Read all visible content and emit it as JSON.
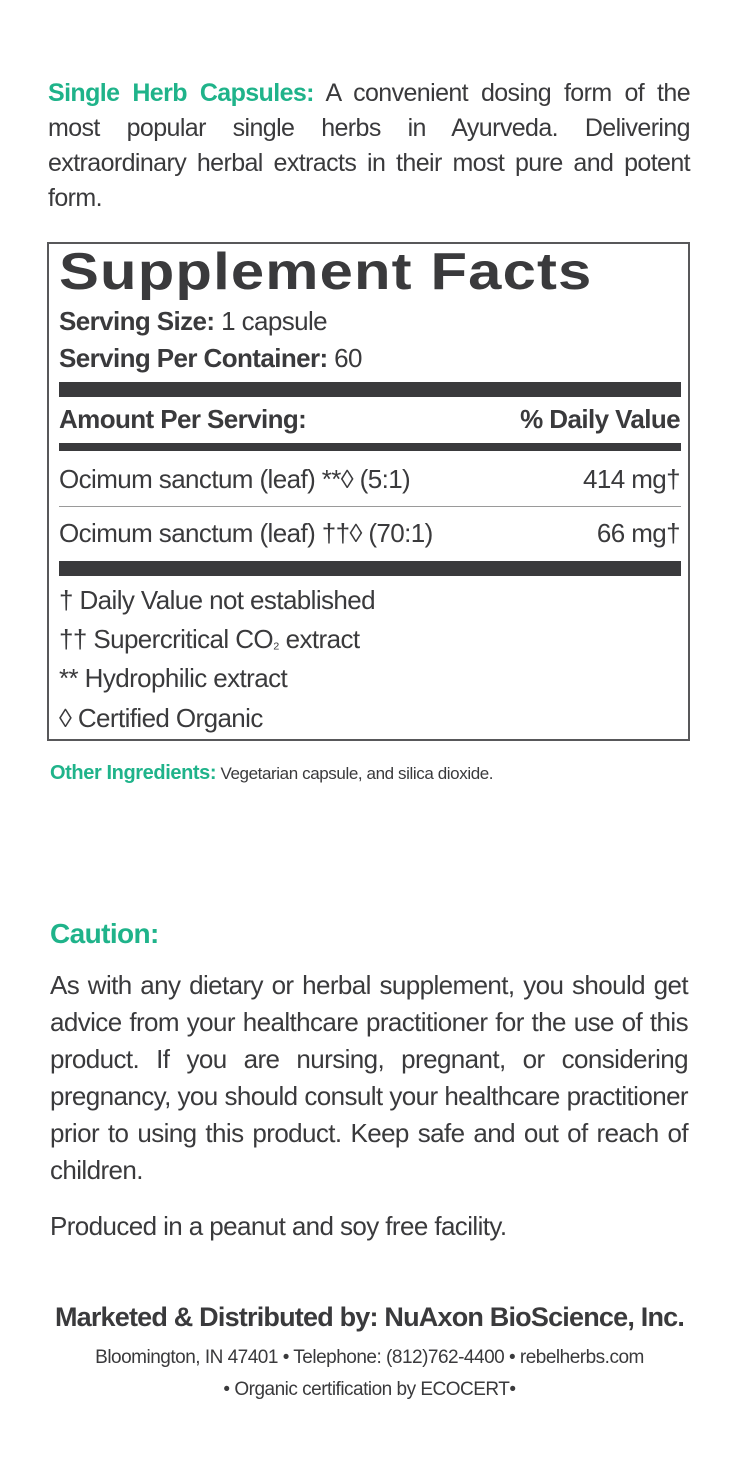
{
  "intro": {
    "heading": "Single Herb Capsules:",
    "text": " A convenient dosing form of the most popular single herbs in Ayurveda. Delivering extraordinary herbal extracts in their most pure and potent form."
  },
  "facts": {
    "title": "Supplement Facts",
    "serving_size_label": "Serving Size:",
    "serving_size_value": " 1 capsule",
    "servings_label": "Serving Per Container:",
    "servings_value": " 60",
    "amount_header": "Amount Per Serving:",
    "dv_header": "% Daily Value",
    "rows": [
      {
        "name": "Ocimum sanctum (leaf) **◊ (5:1)",
        "amount": "414 mg†"
      },
      {
        "name": "Ocimum sanctum (leaf) ††◊ (70:1)",
        "amount": "66 mg†"
      }
    ],
    "footnotes": [
      "† Daily Value not established",
      "†† Supercritical CO",
      "₂",
      " extract",
      "** Hydrophilic extract",
      "◊ Certified Organic"
    ]
  },
  "other": {
    "label": "Other Ingredients:",
    "text": " Vegetarian capsule, and silica dioxide."
  },
  "caution": {
    "heading": "Caution:",
    "text": "As with any dietary or herbal supplement, you should get advice from your healthcare practitioner for the use of this product. If you are nursing, pregnant, or considering pregnancy, you should consult your healthcare practitioner prior to using this product. Keep safe and out of reach of children.",
    "facility": "Produced in a peanut and soy free facility."
  },
  "footer": {
    "marketed": "Marketed & Distributed by: NuAxon BioScience, Inc.",
    "address": "Bloomington, IN 47401 • Telephone: (812)762-4400 • rebelherbs.com",
    "organic": "• Organic certification by ECOCERT•"
  },
  "colors": {
    "accent": "#1fb38a",
    "text": "#3a3a3c"
  }
}
